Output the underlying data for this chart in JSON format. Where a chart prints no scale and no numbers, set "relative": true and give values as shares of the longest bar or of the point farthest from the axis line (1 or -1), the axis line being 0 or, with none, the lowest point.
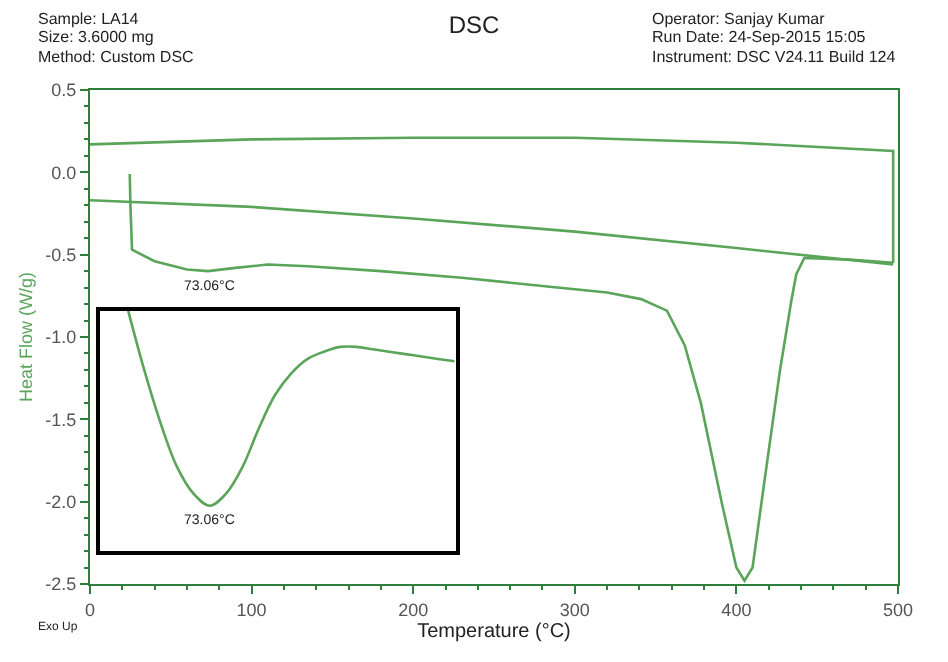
{
  "chart_data": [
    {
      "type": "line",
      "title": "DSC",
      "annotations": [
        "Sample: LA14",
        "Size: 3.6000 mg",
        "Method: Custom DSC",
        "Operator: Sanjay Kumar",
        "Run Date: 24-Sep-2015 15:05",
        "Instrument: DSC V24.11 Build 124",
        "Exo Up",
        {
          "text": "73.06°C",
          "x": 73.06,
          "y": -0.6
        }
      ],
      "xlabel": "Temperature (°C)",
      "ylabel": "Heat Flow (W/g)",
      "xlim": [
        0,
        500
      ],
      "xticks": [
        0,
        100,
        200,
        300,
        400,
        500
      ],
      "ylim": [
        -2.5,
        0.5
      ],
      "yticks": [
        0.5,
        {
          "value": 0,
          "label": "0.0"
        },
        -0.5,
        {
          "value": -1,
          "label": "-1.0"
        },
        -1.5,
        {
          "value": -2,
          "label": "-2.0"
        },
        -2.5
      ],
      "marker": "none",
      "line_style": "solid",
      "series": [
        {
          "color": "#5aa55a",
          "x": [
            0,
            100,
            200,
            300,
            400,
            497,
            497
          ],
          "values": [
            0.17,
            0.2,
            0.21,
            0.21,
            0.18,
            0.13,
            -0.55
          ]
        },
        {
          "color": "#5aa55a",
          "x": [
            0,
            100,
            200,
            300,
            400,
            497
          ],
          "values": [
            -0.17,
            -0.21,
            -0.28,
            -0.36,
            -0.46,
            -0.56
          ]
        },
        {
          "color": "#5aa55a",
          "x": [
            24.6,
            25,
            26,
            40,
            60,
            73.06,
            90,
            110,
            135,
            180,
            230,
            280,
            320,
            341,
            357,
            368,
            378,
            391,
            400,
            405,
            410,
            417,
            427,
            434,
            437,
            442,
            470,
            497
          ],
          "values": [
            -0.01,
            -0.2,
            -0.47,
            -0.54,
            -0.59,
            -0.6,
            -0.58,
            -0.56,
            -0.57,
            -0.6,
            -0.64,
            -0.69,
            -0.73,
            -0.77,
            -0.84,
            -1.05,
            -1.4,
            -2.01,
            -2.4,
            -2.48,
            -2.4,
            -1.9,
            -1.2,
            -0.78,
            -0.62,
            -0.52,
            -0.53,
            -0.55
          ]
        }
      ]
    },
    {
      "type": "line",
      "relative": true,
      "marker": "none",
      "line_style": "solid",
      "categories": [
        null,
        null,
        null,
        null,
        null,
        null,
        null,
        null,
        null,
        null,
        null,
        null,
        null,
        null,
        null,
        null,
        null,
        null,
        null,
        null,
        null
      ],
      "annotations": [
        "73.06°C"
      ],
      "series": [
        {
          "color": "#5aa55a",
          "values": [
            1.0,
            0.75,
            0.53,
            0.35,
            0.24,
            0.19,
            0.24,
            0.35,
            0.51,
            0.65,
            0.74,
            0.8,
            0.83,
            0.85,
            0.85,
            0.84,
            0.83,
            0.82,
            0.81,
            0.8,
            0.79
          ]
        }
      ]
    }
  ]
}
